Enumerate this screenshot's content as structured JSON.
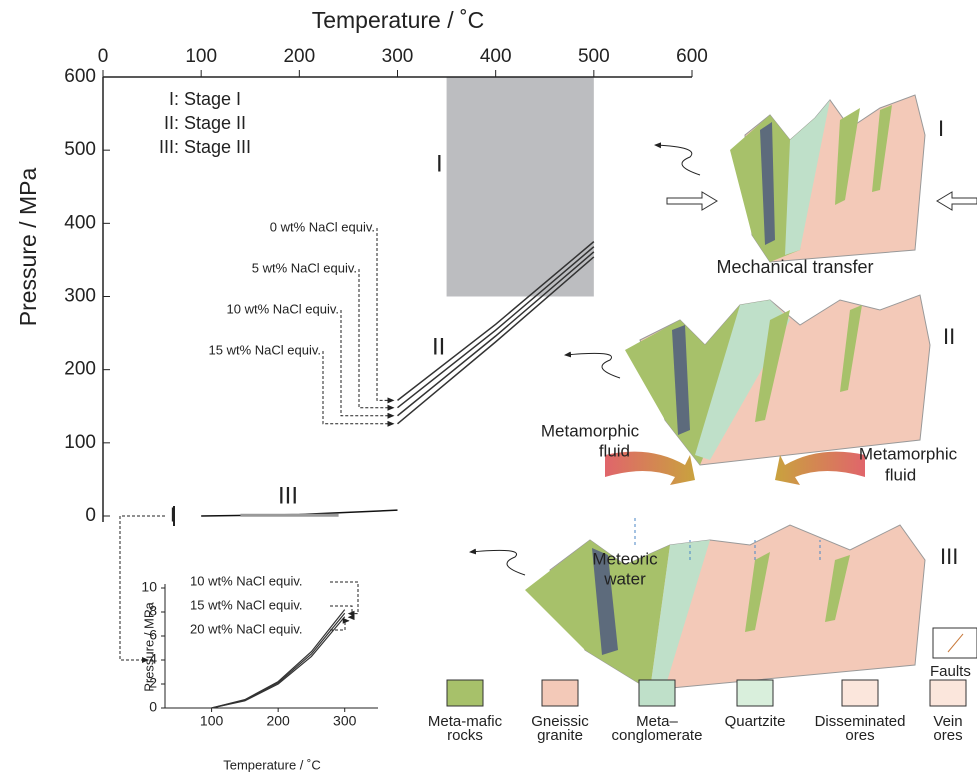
{
  "chart_data": [
    {
      "type": "line",
      "x_label": "Temperature / ˚C",
      "y_label": "Pressure / MPa",
      "xlim": [
        0,
        600
      ],
      "xticks": [
        0,
        100,
        200,
        300,
        400,
        500,
        600
      ],
      "ylim": [
        0,
        600
      ],
      "yticks": [
        0,
        100,
        200,
        300,
        400,
        500,
        600
      ],
      "stage_notes": [
        "I: Stage I",
        "II: Stage II",
        "III: Stage III"
      ],
      "field_labels": [
        "I",
        "II",
        "III"
      ],
      "stage_I_field": {
        "x": [
          350,
          500
        ],
        "y": [
          300,
          600
        ],
        "color": "#bcbdc0"
      },
      "series": [
        {
          "name": "0 wt% NaCl equiv.",
          "color": "#333333",
          "x": [
            300,
            400,
            500
          ],
          "values": [
            158,
            262,
            375
          ]
        },
        {
          "name": "5 wt% NaCl equiv.",
          "color": "#333333",
          "x": [
            300,
            400,
            500
          ],
          "values": [
            148,
            254,
            368
          ]
        },
        {
          "name": "10 wt% NaCl equiv.",
          "color": "#333333",
          "x": [
            300,
            400,
            500
          ],
          "values": [
            137,
            246,
            361
          ]
        },
        {
          "name": "15 wt% NaCl equiv.",
          "color": "#333333",
          "x": [
            300,
            400,
            500
          ],
          "values": [
            126,
            238,
            354
          ]
        }
      ],
      "stage_III_line": {
        "color": "#111111",
        "x": [
          100,
          200,
          300
        ],
        "values": [
          0,
          2,
          8
        ]
      },
      "inset_marker": "I"
    },
    {
      "type": "line",
      "x_label": "Temperature / ˚C",
      "y_label": "Pressure / MPa",
      "xlim": [
        30,
        350
      ],
      "xticks": [
        100,
        200,
        300
      ],
      "ylim": [
        0,
        10
      ],
      "yticks": [
        0,
        2,
        4,
        6,
        8,
        10
      ],
      "series": [
        {
          "name": "10 wt% NaCl equiv.",
          "color": "#333333",
          "x": [
            100,
            150,
            200,
            250,
            300
          ],
          "values": [
            0,
            0.7,
            2.2,
            4.7,
            8.2
          ]
        },
        {
          "name": "15 wt% NaCl equiv.",
          "color": "#333333",
          "x": [
            100,
            150,
            200,
            250,
            300
          ],
          "values": [
            0,
            0.65,
            2.1,
            4.5,
            7.9
          ]
        },
        {
          "name": "20 wt% NaCl equiv.",
          "color": "#333333",
          "x": [
            100,
            150,
            200,
            250,
            300
          ],
          "values": [
            0,
            0.6,
            2.0,
            4.3,
            7.6
          ]
        }
      ]
    }
  ],
  "diagram": {
    "block_labels": [
      "I",
      "II",
      "III"
    ],
    "mechanical": "Mechanical transfer",
    "metamorphic_left": [
      "Metamorphic",
      "fluid"
    ],
    "metamorphic_right": [
      "Metamorphic",
      "fluid"
    ],
    "meteoric": [
      "Meteoric",
      "water"
    ],
    "faults": "Faults",
    "legend": [
      {
        "label": [
          "Meta-mafic",
          "rocks"
        ],
        "color": "#a7c16a"
      },
      {
        "label": [
          "Gneissic",
          "granite"
        ],
        "color": "#f3c9b8"
      },
      {
        "label": [
          "Meta–",
          "conglomerate"
        ],
        "color": "#bfe0c9"
      },
      {
        "label": [
          "Quartzite"
        ],
        "color": "#d9efdc"
      },
      {
        "label": [
          "Disseminated",
          "ores"
        ],
        "color": "#fbe6dc"
      },
      {
        "label": [
          "Vein",
          "ores"
        ],
        "color": "#fbe6dc"
      }
    ]
  }
}
